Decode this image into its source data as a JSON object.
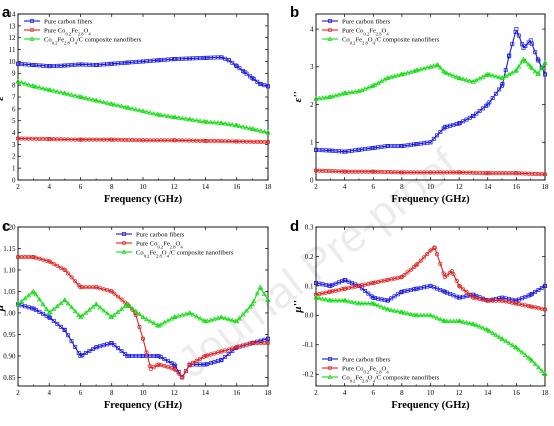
{
  "watermark": "Journal Pre-proof",
  "colors": {
    "pure_carbon": "#1a1adf",
    "pure_cofe": "#e02020",
    "composite": "#11dd11"
  },
  "chart_data": [
    {
      "type": "line",
      "panel": "a",
      "ylabel": "ε'",
      "xlabel": "Frequency (GHz)",
      "xlim": [
        2,
        18
      ],
      "ylim": [
        0,
        14
      ],
      "xticks": [
        "2",
        "4",
        "6",
        "8",
        "10",
        "12",
        "14",
        "16",
        "18"
      ],
      "yticks": [
        "0",
        "1",
        "2",
        "3",
        "4",
        "5",
        "6",
        "7",
        "8",
        "9",
        "10",
        "11",
        "12",
        "13",
        "14"
      ],
      "legend_position": "top-left",
      "series": [
        {
          "name": "Pure carbon fibers",
          "color": "#1a1adf",
          "marker": "square",
          "x": [
            2,
            3,
            4,
            5,
            6,
            7,
            8,
            9,
            10,
            11,
            12,
            13,
            14,
            15,
            15.5,
            16,
            16.5,
            17,
            17.5,
            18
          ],
          "y": [
            9.8,
            9.7,
            9.6,
            9.65,
            9.75,
            9.7,
            9.8,
            9.9,
            10.0,
            10.1,
            10.2,
            10.25,
            10.3,
            10.35,
            10.1,
            9.6,
            9.1,
            8.6,
            8.1,
            7.9
          ]
        },
        {
          "name": "Pure Co0.2Fe2.8O4",
          "color": "#e02020",
          "marker": "circle",
          "x": [
            2,
            4,
            6,
            8,
            10,
            12,
            14,
            16,
            18
          ],
          "y": [
            3.5,
            3.45,
            3.4,
            3.4,
            3.35,
            3.35,
            3.3,
            3.25,
            3.2
          ]
        },
        {
          "name": "Co0.2Fe2.8O4/C composite nanofibers",
          "color": "#11dd11",
          "marker": "triangle",
          "x": [
            2,
            3,
            4,
            5,
            6,
            7,
            8,
            9,
            10,
            11,
            12,
            13,
            14,
            15,
            16,
            17,
            18
          ],
          "y": [
            8.3,
            7.9,
            7.6,
            7.3,
            7.0,
            6.7,
            6.4,
            6.1,
            5.8,
            5.5,
            5.3,
            5.1,
            4.9,
            4.8,
            4.6,
            4.3,
            4.0
          ]
        }
      ]
    },
    {
      "type": "line",
      "panel": "b",
      "ylabel": "ε''",
      "xlabel": "Frequency (GHz)",
      "xlim": [
        2,
        18
      ],
      "ylim": [
        0,
        4.4
      ],
      "xticks": [
        "2",
        "4",
        "6",
        "8",
        "10",
        "12",
        "14",
        "16",
        "18"
      ],
      "yticks": [
        "0",
        "1",
        "2",
        "3",
        "4"
      ],
      "legend_position": "top-left",
      "series": [
        {
          "name": "Pure carbon fibers",
          "color": "#1a1adf",
          "marker": "square",
          "x": [
            2,
            3,
            4,
            5,
            6,
            7,
            8,
            9,
            10,
            11,
            12,
            13,
            14,
            15,
            15.5,
            16,
            16.5,
            17,
            17.5,
            18
          ],
          "y": [
            0.8,
            0.78,
            0.75,
            0.8,
            0.85,
            0.9,
            0.9,
            0.95,
            1.0,
            1.4,
            1.5,
            1.7,
            2.0,
            2.5,
            3.3,
            4.0,
            3.5,
            3.7,
            3.2,
            2.8
          ]
        },
        {
          "name": "Pure Co0.2Fe2.8O4",
          "color": "#e02020",
          "marker": "circle",
          "x": [
            2,
            4,
            6,
            8,
            10,
            12,
            14,
            16,
            18
          ],
          "y": [
            0.25,
            0.22,
            0.22,
            0.2,
            0.2,
            0.2,
            0.18,
            0.18,
            0.15
          ]
        },
        {
          "name": "Co0.2Fe2.8O4/C composite nanofibers",
          "color": "#11dd11",
          "marker": "triangle",
          "x": [
            2,
            3,
            4,
            5,
            6,
            7,
            8,
            9,
            10,
            10.5,
            11,
            12,
            13,
            14,
            15,
            16,
            16.5,
            17,
            17.5,
            18
          ],
          "y": [
            2.15,
            2.2,
            2.3,
            2.35,
            2.5,
            2.7,
            2.8,
            2.9,
            3.0,
            3.05,
            2.85,
            2.7,
            2.6,
            2.8,
            2.7,
            2.9,
            3.2,
            3.0,
            2.8,
            3.1
          ]
        }
      ]
    },
    {
      "type": "line",
      "panel": "c",
      "ylabel": "μ'",
      "xlabel": "Frequency (GHz)",
      "xlim": [
        2,
        18
      ],
      "ylim": [
        0.83,
        1.2
      ],
      "xticks": [
        "2",
        "4",
        "6",
        "8",
        "10",
        "12",
        "14",
        "16",
        "18"
      ],
      "yticks": [
        "0.85",
        "0.90",
        "0.95",
        "1.00",
        "1.05",
        "1.10",
        "1.15",
        "1.20"
      ],
      "legend_position": "top-right",
      "series": [
        {
          "name": "Pure carbon fibers",
          "color": "#1a1adf",
          "marker": "square",
          "x": [
            2,
            3,
            4,
            5,
            6,
            7,
            8,
            9,
            10,
            11,
            12,
            12.5,
            13,
            14,
            15,
            16,
            17,
            18
          ],
          "y": [
            1.02,
            1.01,
            0.99,
            0.96,
            0.9,
            0.92,
            0.93,
            0.9,
            0.9,
            0.9,
            0.88,
            0.85,
            0.88,
            0.88,
            0.89,
            0.92,
            0.93,
            0.94
          ]
        },
        {
          "name": "Pure Co0.2Fe2.8O4",
          "color": "#e02020",
          "marker": "circle",
          "x": [
            2,
            3,
            4,
            5,
            6,
            7,
            8,
            9,
            9.5,
            10,
            10.5,
            11,
            12,
            12.5,
            13,
            14,
            15,
            16,
            17,
            18
          ],
          "y": [
            1.13,
            1.13,
            1.12,
            1.1,
            1.06,
            1.06,
            1.05,
            1.02,
            1.0,
            0.94,
            0.87,
            0.88,
            0.87,
            0.85,
            0.88,
            0.9,
            0.91,
            0.92,
            0.93,
            0.93
          ]
        },
        {
          "name": "Co0.2Fe2.8O4/C composite nanofibers",
          "color": "#11dd11",
          "marker": "triangle",
          "x": [
            2,
            3,
            4,
            5,
            6,
            7,
            8,
            9,
            10,
            11,
            12,
            13,
            14,
            15,
            16,
            17,
            17.5,
            18
          ],
          "y": [
            1.02,
            1.05,
            1.0,
            1.03,
            0.99,
            1.02,
            0.99,
            1.02,
            0.99,
            0.97,
            0.99,
            1.0,
            0.98,
            0.99,
            0.98,
            1.02,
            1.06,
            1.03
          ]
        }
      ]
    },
    {
      "type": "line",
      "panel": "d",
      "ylabel": "μ''",
      "xlabel": "Frequency (GHz)",
      "xlim": [
        2,
        18
      ],
      "ylim": [
        -0.24,
        0.3
      ],
      "xticks": [
        "2",
        "4",
        "6",
        "8",
        "10",
        "12",
        "14",
        "16",
        "18"
      ],
      "yticks": [
        "-0.2",
        "-0.1",
        "0.0",
        "0.1",
        "0.2",
        "0.3"
      ],
      "legend_position": "bottom-left",
      "series": [
        {
          "name": "Pure carbon fibers",
          "color": "#1a1adf",
          "marker": "square",
          "x": [
            2,
            3,
            4,
            5,
            6,
            7,
            8,
            9,
            10,
            11,
            12,
            13,
            14,
            15,
            16,
            17,
            18
          ],
          "y": [
            0.11,
            0.1,
            0.12,
            0.1,
            0.06,
            0.05,
            0.08,
            0.09,
            0.1,
            0.08,
            0.06,
            0.07,
            0.05,
            0.06,
            0.05,
            0.07,
            0.1
          ]
        },
        {
          "name": "Pure Co0.2Fe2.8O4",
          "color": "#e02020",
          "marker": "circle",
          "x": [
            2,
            3,
            4,
            5,
            6,
            7,
            8,
            9,
            10,
            10.3,
            11,
            11.5,
            12,
            13,
            14,
            15,
            16,
            17,
            18
          ],
          "y": [
            0.07,
            0.08,
            0.09,
            0.1,
            0.11,
            0.12,
            0.13,
            0.17,
            0.22,
            0.23,
            0.13,
            0.15,
            0.1,
            0.06,
            0.05,
            0.05,
            0.04,
            0.03,
            0.02
          ]
        },
        {
          "name": "Co0.2Fe2.8O4/C composite nanofibers",
          "color": "#11dd11",
          "marker": "triangle",
          "x": [
            2,
            3,
            4,
            5,
            6,
            7,
            8,
            9,
            10,
            11,
            12,
            13,
            14,
            15,
            16,
            17,
            18
          ],
          "y": [
            0.06,
            0.05,
            0.05,
            0.04,
            0.04,
            0.02,
            0.01,
            0.0,
            0.0,
            -0.02,
            -0.02,
            -0.03,
            -0.05,
            -0.08,
            -0.11,
            -0.15,
            -0.2
          ]
        }
      ]
    }
  ]
}
